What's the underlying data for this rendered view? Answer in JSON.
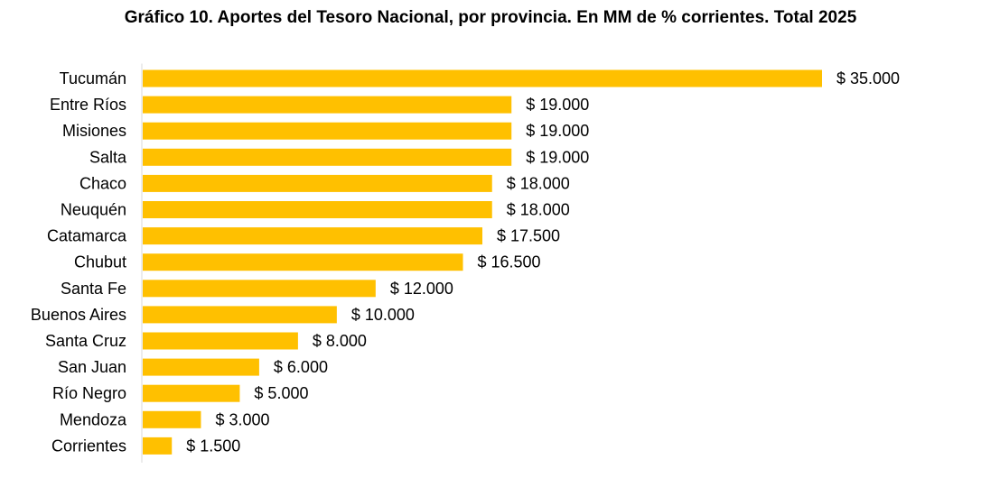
{
  "chart_data": {
    "type": "bar",
    "orientation": "horizontal",
    "title": "Gráfico 10. Aportes del Tesoro Nacional, por provincia. En MM de % corrientes. Total 2025",
    "categories": [
      "Tucumán",
      "Entre Ríos",
      "Misiones",
      "Salta",
      "Chaco",
      "Neuquén",
      "Catamarca",
      "Chubut",
      "Santa Fe",
      "Buenos Aires",
      "Santa Cruz",
      "San Juan",
      "Río Negro",
      "Mendoza",
      "Corrientes"
    ],
    "values": [
      35000,
      19000,
      19000,
      19000,
      18000,
      18000,
      17500,
      16500,
      12000,
      10000,
      8000,
      6000,
      5000,
      3000,
      1500
    ],
    "value_labels": [
      "$ 35.000",
      "$ 19.000",
      "$ 19.000",
      "$ 19.000",
      "$ 18.000",
      "$ 18.000",
      "$ 17.500",
      "$ 16.500",
      "$ 12.000",
      "$ 10.000",
      "$ 8.000",
      "$ 6.000",
      "$ 5.000",
      "$ 3.000",
      "$ 1.500"
    ],
    "xlabel": "",
    "ylabel": "",
    "xlim": [
      0,
      35000
    ],
    "grid": false,
    "legend": "none",
    "bar_color": "#FFC000",
    "axis_color": "#D9D9D9"
  }
}
